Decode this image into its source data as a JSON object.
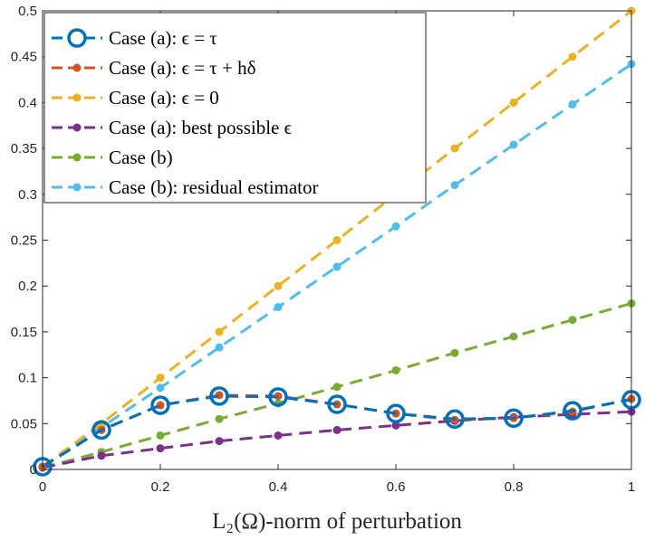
{
  "chart_data": {
    "type": "line",
    "title": "",
    "xlabel": "L₂(Ω)-norm of perturbation",
    "ylabel": "",
    "xlim": [
      0,
      1
    ],
    "ylim": [
      0,
      0.5
    ],
    "grid": false,
    "legend_location": "top-left",
    "x": [
      0,
      0.1,
      0.2,
      0.3,
      0.4,
      0.5,
      0.6,
      0.7,
      0.8,
      0.9,
      1.0
    ],
    "x_ticks": [
      0,
      0.2,
      0.4,
      0.6,
      0.8,
      1
    ],
    "x_tick_labels": [
      "0",
      "0.2",
      "0.4",
      "0.6",
      "0.8",
      "1"
    ],
    "y_ticks": [
      0,
      0.05,
      0.1,
      0.15,
      0.2,
      0.25,
      0.3,
      0.35,
      0.4,
      0.45,
      0.5
    ],
    "y_tick_labels": [
      "0",
      "0.05",
      "0.1",
      "0.15",
      "0.2",
      "0.25",
      "0.3",
      "0.35",
      "0.4",
      "0.45",
      "0.5"
    ],
    "series": [
      {
        "name": "Case (a): ϵ = τ",
        "color": "#0072BD",
        "marker": "circle-open",
        "values": [
          0.003,
          0.043,
          0.07,
          0.08,
          0.079,
          0.071,
          0.061,
          0.055,
          0.056,
          0.064,
          0.076
        ]
      },
      {
        "name": "Case (a): ϵ = τ + hδ",
        "color": "#D95319",
        "marker": "dot",
        "values": [
          0.003,
          0.043,
          0.07,
          0.081,
          0.08,
          0.071,
          0.061,
          0.054,
          0.056,
          0.063,
          0.077
        ]
      },
      {
        "name": "Case (a): ϵ = 0",
        "color": "#EDB120",
        "marker": "dot",
        "values": [
          0.003,
          0.05,
          0.1,
          0.15,
          0.2,
          0.25,
          0.3,
          0.35,
          0.4,
          0.45,
          0.5
        ]
      },
      {
        "name": "Case (a):  best possible ϵ",
        "color": "#7E2F8E",
        "marker": "dot",
        "values": [
          0.002,
          0.015,
          0.023,
          0.031,
          0.037,
          0.043,
          0.048,
          0.053,
          0.057,
          0.06,
          0.063
        ]
      },
      {
        "name": "Case (b)",
        "color": "#77AC30",
        "marker": "dot",
        "values": [
          0.002,
          0.019,
          0.037,
          0.055,
          0.072,
          0.09,
          0.108,
          0.127,
          0.145,
          0.163,
          0.181
        ]
      },
      {
        "name": "Case (b):  residual estimator",
        "color": "#4DBEEE",
        "marker": "dot",
        "values": [
          0.003,
          0.046,
          0.089,
          0.133,
          0.177,
          0.221,
          0.265,
          0.31,
          0.354,
          0.398,
          0.442
        ]
      }
    ]
  }
}
